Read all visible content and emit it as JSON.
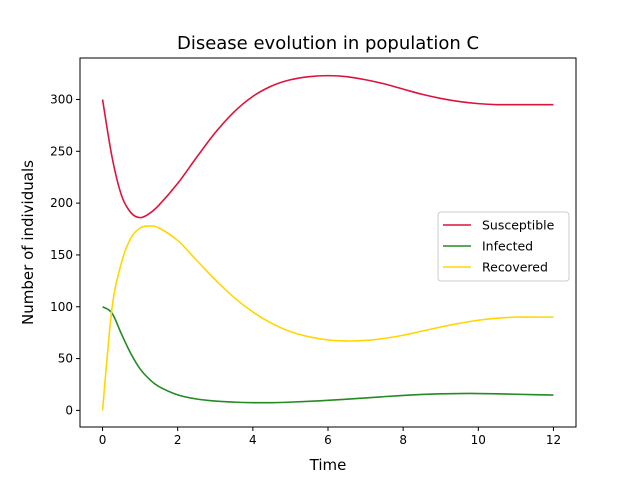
{
  "chart_data": {
    "type": "line",
    "title": "Disease evolution in population C",
    "xlabel": "Time",
    "ylabel": "Number of individuals",
    "xlim": [
      -0.6,
      12.6
    ],
    "ylim": [
      -16,
      340
    ],
    "xticks": [
      0,
      2,
      4,
      6,
      8,
      10,
      12
    ],
    "yticks": [
      0,
      50,
      100,
      150,
      200,
      250,
      300
    ],
    "grid": false,
    "legend_position": "center-right",
    "x": [
      0,
      0.25,
      0.5,
      0.75,
      1,
      1.25,
      1.5,
      2,
      2.5,
      3,
      3.5,
      4,
      4.5,
      5,
      5.5,
      6,
      6.5,
      7,
      7.5,
      8,
      8.5,
      9,
      9.5,
      10,
      10.5,
      11,
      11.5,
      12
    ],
    "series": [
      {
        "name": "Susceptible",
        "color": "#dc143c",
        "values": [
          300,
          245,
          208,
          191,
          186,
          190,
          198,
          219,
          244,
          268,
          288,
          303,
          313,
          319,
          322,
          323,
          322,
          319,
          315,
          310,
          305,
          301,
          298,
          296,
          295,
          295,
          295,
          295
        ]
      },
      {
        "name": "Infected",
        "color": "#228b22",
        "values": [
          100,
          94,
          74,
          55,
          40,
          30,
          23,
          15,
          11,
          9,
          8,
          7.5,
          7.5,
          8,
          8.8,
          9.7,
          10.8,
          12,
          13.3,
          14.5,
          15.4,
          16,
          16.3,
          16.3,
          16,
          15.6,
          15.2,
          14.8
        ]
      },
      {
        "name": "Recovered",
        "color": "#ffd700",
        "values": [
          0,
          98,
          142,
          166,
          176,
          178,
          176,
          164,
          145,
          126,
          109,
          95,
          84,
          76,
          71,
          68,
          67,
          67.5,
          69.5,
          72.5,
          76.5,
          80.5,
          84,
          87,
          89,
          90,
          90,
          90
        ]
      }
    ]
  }
}
